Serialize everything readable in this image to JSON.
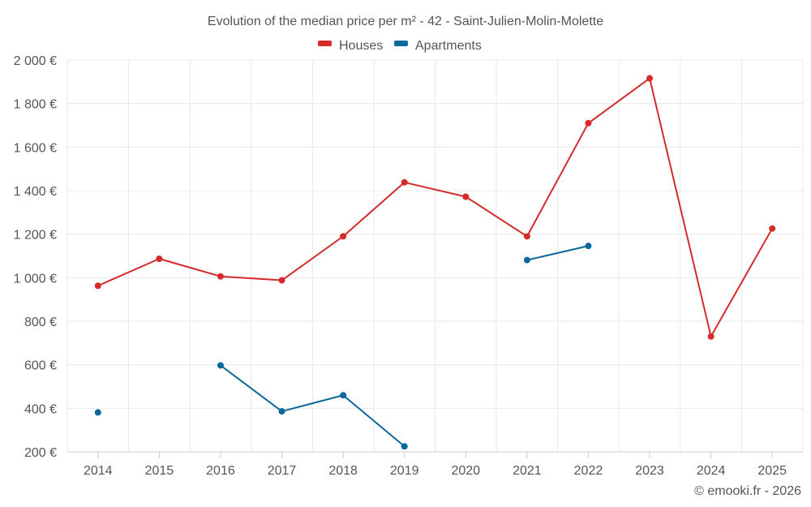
{
  "chart_data": {
    "type": "line",
    "title": "Evolution of the median price per m² - 42 - Saint-Julien-Molin-Molette",
    "categories": [
      "2014",
      "2015",
      "2016",
      "2017",
      "2018",
      "2019",
      "2020",
      "2021",
      "2022",
      "2023",
      "2024",
      "2025"
    ],
    "ylim": [
      200,
      2000
    ],
    "yticks": [
      200,
      400,
      600,
      800,
      1000,
      1200,
      1400,
      1600,
      1800,
      2000
    ],
    "ytick_labels": [
      "200 €",
      "400 €",
      "600 €",
      "800 €",
      "1 000 €",
      "1 200 €",
      "1 400 €",
      "1 600 €",
      "1 800 €",
      "2 000 €"
    ],
    "grid": true,
    "legend_position": "top-center",
    "series": [
      {
        "name": "Houses",
        "color": "#d42a2a",
        "values": [
          963,
          1087,
          1006,
          988,
          1190,
          1438,
          1372,
          1190,
          1710,
          1916,
          730,
          1226
        ]
      },
      {
        "name": "Apartments",
        "color": "#0a689c",
        "values": [
          381,
          null,
          597,
          386,
          460,
          225,
          null,
          1081,
          1146,
          null,
          null,
          null
        ]
      }
    ],
    "credit": "© emooki.fr - 2026"
  }
}
